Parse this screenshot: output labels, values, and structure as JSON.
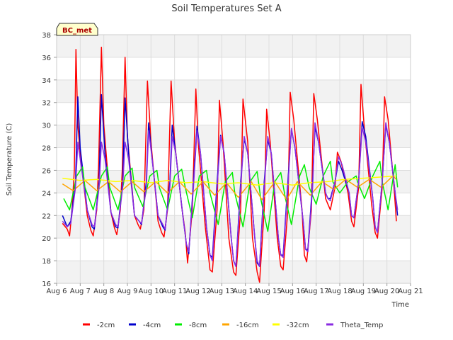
{
  "chart_data": {
    "type": "line",
    "title": "Soil Temperatures Set A",
    "xlabel": "Time",
    "ylabel": "Soil Temperature (C)",
    "badge": "BC_met",
    "xlim": [
      6,
      21
    ],
    "ylim": [
      16,
      38
    ],
    "x_ticks": [
      6,
      7,
      8,
      9,
      10,
      11,
      12,
      13,
      14,
      15,
      16,
      17,
      18,
      19,
      20,
      21
    ],
    "x_tick_labels": [
      "Aug 6",
      "Aug 7",
      "Aug 8",
      "Aug 9",
      "Aug 10",
      "Aug 11",
      "Aug 12",
      "Aug 13",
      "Aug 14",
      "Aug 15",
      "Aug 16",
      "Aug 17",
      "Aug 18",
      "Aug 19",
      "Aug 20",
      "Aug 21"
    ],
    "y_ticks": [
      16,
      18,
      20,
      22,
      24,
      26,
      28,
      30,
      32,
      34,
      36,
      38
    ],
    "y_tick_labels": [
      "16",
      "18",
      "20",
      "22",
      "24",
      "26",
      "28",
      "30",
      "32",
      "34",
      "36",
      "38"
    ],
    "grid": true,
    "alternating_bands": true,
    "legend_position": "bottom",
    "series": [
      {
        "name": "-2cm",
        "color": "#ff0000",
        "x": [
          6.25,
          6.45,
          6.55,
          6.65,
          6.75,
          6.82,
          6.9,
          7.0,
          7.3,
          7.45,
          7.55,
          7.7,
          7.78,
          7.9,
          8.0,
          8.3,
          8.45,
          8.55,
          8.7,
          8.78,
          8.9,
          9.0,
          9.3,
          9.45,
          9.55,
          9.7,
          9.85,
          10.0,
          10.3,
          10.45,
          10.55,
          10.7,
          10.85,
          11.0,
          11.3,
          11.45,
          11.55,
          11.75,
          11.9,
          12.0,
          12.3,
          12.5,
          12.6,
          12.8,
          12.9,
          13.05,
          13.3,
          13.5,
          13.6,
          13.8,
          13.9,
          14.1,
          14.3,
          14.5,
          14.6,
          14.8,
          14.9,
          15.05,
          15.35,
          15.5,
          15.6,
          15.8,
          15.9,
          16.05,
          16.4,
          16.5,
          16.6,
          16.8,
          16.9,
          17.05,
          17.4,
          17.5,
          17.6,
          17.8,
          17.9,
          18.05,
          18.35,
          18.5,
          18.6,
          18.8,
          18.9,
          19.05,
          19.35,
          19.5,
          19.6,
          19.8,
          19.9,
          20.05,
          20.3,
          20.4
        ],
        "y": [
          21.3,
          20.8,
          20.2,
          22.5,
          26.0,
          36.7,
          30.0,
          27.5,
          22.0,
          20.7,
          20.2,
          22.5,
          26.5,
          36.9,
          30.0,
          22.3,
          20.9,
          20.3,
          22.5,
          26.0,
          36.0,
          29.0,
          22.0,
          21.2,
          20.8,
          22.5,
          33.9,
          28.5,
          21.5,
          20.5,
          20.1,
          22.5,
          33.9,
          28.5,
          22.8,
          20.5,
          17.8,
          22.5,
          33.2,
          28.5,
          21.0,
          17.2,
          17.0,
          22.5,
          32.2,
          28.5,
          20.0,
          17.0,
          16.7,
          22.5,
          32.3,
          28.5,
          20.0,
          17.0,
          16.1,
          22.5,
          31.4,
          28.5,
          20.0,
          17.5,
          17.2,
          22.5,
          32.9,
          30.5,
          22.5,
          18.5,
          17.9,
          22.5,
          32.8,
          30.5,
          23.5,
          23.0,
          22.5,
          24.5,
          27.6,
          26.8,
          24.0,
          21.5,
          21.0,
          24.5,
          33.6,
          29.5,
          23.0,
          20.5,
          20.0,
          24.5,
          32.5,
          30.5,
          24.5,
          21.5
        ]
      },
      {
        "name": "-4cm",
        "color": "#0000cc",
        "x": [
          6.25,
          6.45,
          6.6,
          6.8,
          6.9,
          7.0,
          7.3,
          7.5,
          7.6,
          7.8,
          7.9,
          8.05,
          8.3,
          8.5,
          8.6,
          8.8,
          8.9,
          9.05,
          9.3,
          9.5,
          9.6,
          9.8,
          9.9,
          10.05,
          10.3,
          10.5,
          10.6,
          10.8,
          10.9,
          11.05,
          11.35,
          11.5,
          11.6,
          11.8,
          11.95,
          12.1,
          12.35,
          12.5,
          12.6,
          12.8,
          12.95,
          13.1,
          13.4,
          13.5,
          13.6,
          13.8,
          13.95,
          14.1,
          14.4,
          14.5,
          14.6,
          14.8,
          14.95,
          15.1,
          15.4,
          15.5,
          15.6,
          15.8,
          15.95,
          16.1,
          16.45,
          16.55,
          16.65,
          16.85,
          16.95,
          17.1,
          17.4,
          17.5,
          17.6,
          17.8,
          17.95,
          18.1,
          18.4,
          18.5,
          18.6,
          18.8,
          18.95,
          19.1,
          19.4,
          19.5,
          19.6,
          19.8,
          19.95,
          20.1,
          20.35,
          20.45
        ],
        "y": [
          22.0,
          21.0,
          21.5,
          25.0,
          32.5,
          28.0,
          22.5,
          21.0,
          20.8,
          25.0,
          32.7,
          27.5,
          22.3,
          21.0,
          20.9,
          25.0,
          32.4,
          27.5,
          22.0,
          21.5,
          21.2,
          25.0,
          30.2,
          27.0,
          22.0,
          21.0,
          20.7,
          25.0,
          30.0,
          27.5,
          22.0,
          19.5,
          18.6,
          25.0,
          29.9,
          27.5,
          21.0,
          18.5,
          18.3,
          25.0,
          29.1,
          27.5,
          20.0,
          18.0,
          17.5,
          25.0,
          28.8,
          27.5,
          20.0,
          17.8,
          17.5,
          25.0,
          28.7,
          27.5,
          20.0,
          18.5,
          18.5,
          25.0,
          29.6,
          28.0,
          21.5,
          19.0,
          19.0,
          25.0,
          29.8,
          28.5,
          24.0,
          23.5,
          23.5,
          25.0,
          26.8,
          26.0,
          24.0,
          22.0,
          21.8,
          25.0,
          30.3,
          29.0,
          23.5,
          21.0,
          20.5,
          25.0,
          30.0,
          28.5,
          24.0,
          22.0
        ]
      },
      {
        "name": "-8cm",
        "color": "#00ee00",
        "x": [
          6.3,
          6.55,
          6.85,
          7.1,
          7.2,
          7.55,
          7.9,
          8.15,
          8.25,
          8.6,
          8.9,
          9.2,
          9.3,
          9.65,
          9.95,
          10.25,
          10.35,
          10.7,
          11.0,
          11.3,
          11.45,
          11.75,
          12.05,
          12.35,
          12.5,
          12.85,
          13.15,
          13.45,
          13.55,
          13.9,
          14.2,
          14.5,
          14.65,
          14.95,
          15.25,
          15.5,
          15.7,
          15.95,
          16.3,
          16.5,
          16.7,
          17.0,
          17.3,
          17.6,
          17.7,
          18.0,
          18.35,
          18.7,
          18.75,
          19.05,
          19.4,
          19.7,
          19.8,
          20.05,
          20.35,
          20.45
        ],
        "y": [
          23.5,
          22.5,
          25.5,
          26.3,
          24.5,
          22.5,
          25.5,
          26.3,
          24.5,
          22.5,
          25.5,
          26.2,
          24.5,
          22.8,
          25.5,
          26.0,
          24.5,
          22.5,
          25.5,
          26.1,
          24.5,
          21.8,
          25.5,
          26.0,
          24.0,
          21.2,
          25.0,
          25.8,
          24.0,
          21.0,
          25.0,
          25.9,
          23.5,
          20.6,
          25.0,
          25.8,
          23.5,
          21.2,
          25.5,
          26.5,
          24.5,
          23.0,
          25.5,
          26.8,
          25.0,
          24.0,
          25.0,
          25.5,
          25.0,
          23.5,
          25.5,
          26.8,
          25.0,
          22.5,
          26.5,
          24.5
        ]
      },
      {
        "name": "-16cm",
        "color": "#ffa500",
        "x": [
          6.25,
          6.7,
          7.2,
          7.7,
          8.2,
          8.7,
          9.2,
          9.7,
          10.2,
          10.7,
          11.2,
          11.7,
          12.2,
          12.7,
          13.2,
          13.7,
          14.25,
          14.7,
          15.25,
          15.75,
          16.2,
          16.75,
          17.25,
          17.75,
          18.25,
          18.75,
          19.25,
          19.75,
          20.25,
          20.4
        ],
        "y": [
          24.8,
          24.2,
          25.1,
          24.2,
          25.0,
          24.1,
          25.0,
          24.1,
          25.0,
          24.0,
          25.0,
          23.9,
          25.0,
          23.8,
          24.9,
          23.6,
          25.0,
          23.4,
          25.0,
          23.4,
          25.0,
          23.8,
          25.0,
          24.3,
          25.2,
          24.5,
          25.2,
          24.5,
          25.5,
          25.2
        ]
      },
      {
        "name": "-32cm",
        "color": "#ffff00",
        "x": [
          6.25,
          7.0,
          7.7,
          8.5,
          9.2,
          10.0,
          10.7,
          11.5,
          12.2,
          13.0,
          13.7,
          14.5,
          15.2,
          16.0,
          16.7,
          17.5,
          18.2,
          19.0,
          19.7,
          20.4
        ],
        "y": [
          25.3,
          25.1,
          25.2,
          25.0,
          25.1,
          24.9,
          25.1,
          24.9,
          25.0,
          24.8,
          24.9,
          24.7,
          24.9,
          24.7,
          24.9,
          25.0,
          25.2,
          25.3,
          25.4,
          25.5
        ]
      },
      {
        "name": "Theta_Temp",
        "color": "#8a2be2",
        "x": [
          6.25,
          6.45,
          6.6,
          6.8,
          6.9,
          7.0,
          7.3,
          7.5,
          7.6,
          7.8,
          7.9,
          8.05,
          8.3,
          8.5,
          8.6,
          8.8,
          8.9,
          9.05,
          9.3,
          9.5,
          9.6,
          9.8,
          9.9,
          10.05,
          10.3,
          10.5,
          10.6,
          10.8,
          10.9,
          11.05,
          11.35,
          11.5,
          11.6,
          11.8,
          11.95,
          12.1,
          12.35,
          12.5,
          12.6,
          12.8,
          12.95,
          13.1,
          13.4,
          13.5,
          13.6,
          13.8,
          13.95,
          14.1,
          14.4,
          14.5,
          14.6,
          14.8,
          14.95,
          15.1,
          15.4,
          15.5,
          15.6,
          15.8,
          15.95,
          16.1,
          16.45,
          16.55,
          16.65,
          16.85,
          16.95,
          17.1,
          17.4,
          17.5,
          17.6,
          17.8,
          17.95,
          18.1,
          18.4,
          18.5,
          18.6,
          18.8,
          18.95,
          19.1,
          19.4,
          19.5,
          19.6,
          19.8,
          19.95,
          20.1,
          20.35,
          20.45
        ],
        "y": [
          21.5,
          21.0,
          21.3,
          24.5,
          28.5,
          27.0,
          22.5,
          21.2,
          21.0,
          24.5,
          28.5,
          27.0,
          22.3,
          21.2,
          21.0,
          24.5,
          28.5,
          27.0,
          22.0,
          21.5,
          21.3,
          24.5,
          29.5,
          27.0,
          22.0,
          21.2,
          20.8,
          24.5,
          29.0,
          27.5,
          22.0,
          19.5,
          18.8,
          24.5,
          29.5,
          27.5,
          21.0,
          18.5,
          18.0,
          24.5,
          29.0,
          27.5,
          20.0,
          18.0,
          17.5,
          24.5,
          29.0,
          27.5,
          20.0,
          18.0,
          17.5,
          24.5,
          29.0,
          27.5,
          20.0,
          18.5,
          18.3,
          24.5,
          29.7,
          28.0,
          21.5,
          19.0,
          18.8,
          24.5,
          30.2,
          28.5,
          24.0,
          23.5,
          23.3,
          25.0,
          27.2,
          26.5,
          24.0,
          22.0,
          21.8,
          25.0,
          29.8,
          28.5,
          23.5,
          21.0,
          20.5,
          25.0,
          30.2,
          28.5,
          24.0,
          22.5
        ]
      }
    ]
  }
}
